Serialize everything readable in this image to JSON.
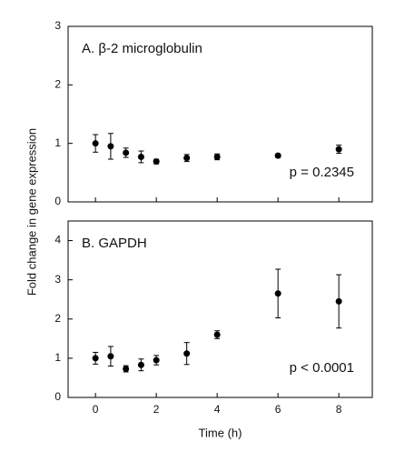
{
  "chart_data": [
    {
      "type": "scatter",
      "title": "A.  β-2 microglobulin",
      "annotation": "p = 0.2345",
      "ylabel": "Fold change in gene expression",
      "x": [
        0,
        0.5,
        1,
        1.5,
        2,
        3,
        4,
        6,
        8
      ],
      "series": [
        {
          "name": "β-2 microglobulin",
          "color": "#000000",
          "values": [
            1.0,
            0.95,
            0.84,
            0.77,
            0.69,
            0.75,
            0.77,
            0.79,
            0.9
          ],
          "errors": [
            0.15,
            0.22,
            0.08,
            0.1,
            0.04,
            0.06,
            0.05,
            0.03,
            0.07
          ]
        }
      ],
      "xlim": [
        -0.9,
        9.1
      ],
      "xticks": [
        0,
        2,
        4,
        6,
        8
      ],
      "ylim": [
        0,
        3
      ],
      "yticks": [
        0,
        1,
        2,
        3
      ]
    },
    {
      "type": "scatter",
      "title": "B.  GAPDH",
      "annotation": "p < 0.0001",
      "xlabel": "Time (h)",
      "x": [
        0,
        0.5,
        1,
        1.5,
        2,
        3,
        4,
        6,
        8
      ],
      "series": [
        {
          "name": "GAPDH",
          "color": "#000000",
          "values": [
            1.0,
            1.05,
            0.73,
            0.83,
            0.95,
            1.12,
            1.6,
            2.65,
            2.45
          ],
          "errors": [
            0.15,
            0.25,
            0.08,
            0.15,
            0.12,
            0.28,
            0.1,
            0.62,
            0.68
          ]
        }
      ],
      "xlim": [
        -0.9,
        9.1
      ],
      "xticks": [
        0,
        2,
        4,
        6,
        8
      ],
      "ylim": [
        0,
        4.5
      ],
      "yticks": [
        0,
        1,
        2,
        3,
        4
      ]
    }
  ]
}
